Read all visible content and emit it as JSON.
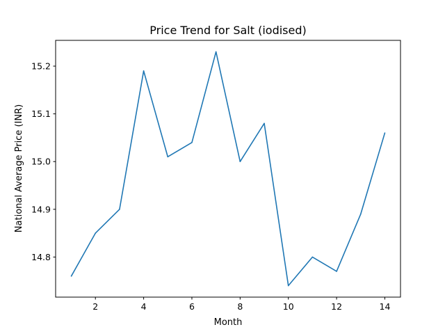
{
  "chart_data": {
    "type": "line",
    "title": "Price Trend for Salt (iodised)",
    "xlabel": "Month",
    "ylabel": "National Average Price (INR)",
    "x": [
      1,
      2,
      3,
      4,
      5,
      6,
      7,
      8,
      9,
      10,
      11,
      12,
      13,
      14
    ],
    "series": [
      {
        "values": [
          14.76,
          14.85,
          14.9,
          15.19,
          15.01,
          15.04,
          15.23,
          15.0,
          15.08,
          14.74,
          14.8,
          14.77,
          14.89,
          15.06
        ],
        "color": "#1f77b4"
      }
    ],
    "xlim": [
      0.35,
      14.65
    ],
    "ylim": [
      14.716,
      15.254
    ],
    "xticks": [
      2,
      4,
      6,
      8,
      10,
      12,
      14
    ],
    "xtick_labels": [
      "2",
      "4",
      "6",
      "8",
      "10",
      "12",
      "14"
    ],
    "yticks": [
      14.8,
      14.9,
      15.0,
      15.1,
      15.2
    ],
    "ytick_labels": [
      "14.8",
      "14.9",
      "15.0",
      "15.1",
      "15.2"
    ],
    "grid": false,
    "legend": "none"
  }
}
